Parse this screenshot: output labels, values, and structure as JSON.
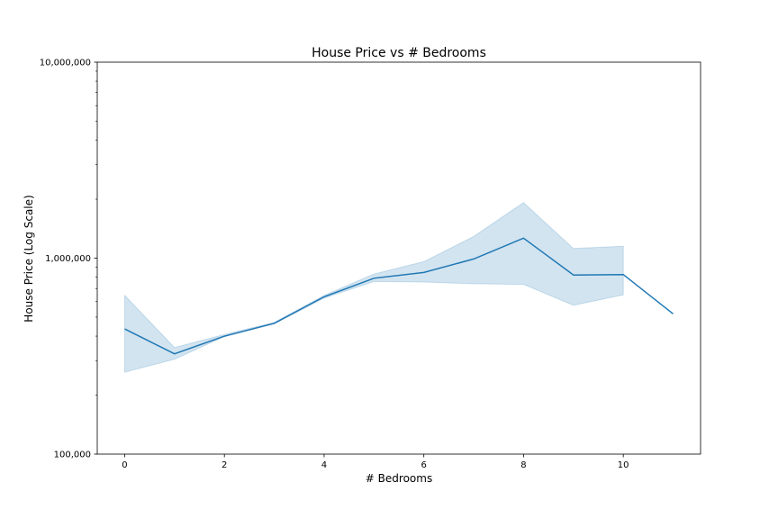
{
  "chart_data": {
    "type": "line",
    "title": "House Price vs # Bedrooms",
    "xlabel": "# Bedrooms",
    "ylabel": "House Price (Log Scale)",
    "yscale": "log",
    "xlim": [
      -0.55,
      11.55
    ],
    "ylim": [
      100000,
      10000000
    ],
    "xticks": [
      0,
      2,
      4,
      6,
      8,
      10
    ],
    "xtick_labels": [
      "0",
      "2",
      "4",
      "6",
      "8",
      "10"
    ],
    "yticks": [
      100000,
      1000000,
      10000000
    ],
    "ytick_labels": [
      "100,000",
      "1,000,000",
      "10,000,000"
    ],
    "grid": false,
    "series": [
      {
        "color": "#1f77b4",
        "x": [
          0,
          1,
          2,
          3,
          4,
          5,
          6,
          7,
          8,
          9,
          10,
          11
        ],
        "y": [
          435000,
          325000,
          400000,
          465000,
          635000,
          790000,
          845000,
          990000,
          1265000,
          820000,
          825000,
          520000
        ],
        "ci_lower": [
          262000,
          305000,
          398000,
          462000,
          625000,
          760000,
          755000,
          740000,
          735000,
          575000,
          650000,
          null
        ],
        "ci_upper": [
          645000,
          350000,
          408000,
          470000,
          645000,
          830000,
          960000,
          1290000,
          1920000,
          1120000,
          1150000,
          null
        ]
      }
    ]
  }
}
